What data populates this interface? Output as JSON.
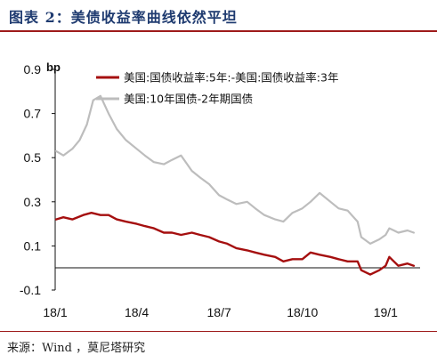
{
  "header": {
    "title": "图表 2：美债收益率曲线依然平坦"
  },
  "source": {
    "text": "来源：Wind ，莫尼塔研究"
  },
  "chart_data": {
    "type": "line",
    "ylabel": "bp",
    "ylim": [
      -0.1,
      0.9
    ],
    "yticks": [
      "0.9",
      "0.7",
      "0.5",
      "0.3",
      "0.1",
      "-0.1"
    ],
    "yticks_values": [
      0.9,
      0.7,
      0.5,
      0.3,
      0.1,
      -0.1
    ],
    "xticks": [
      "18/1",
      "18/4",
      "18/7",
      "18/10",
      "19/1"
    ],
    "xticks_values": [
      "2018-01-01",
      "2018-04-01",
      "2018-07-01",
      "2018-10-01",
      "2019-01-01"
    ],
    "grid": false,
    "legend_position": "top",
    "series": [
      {
        "name": "美国:国债收益率:5年:-美国:国债收益率:3年",
        "color": "#a50f0f",
        "points": [
          [
            "2018-01-02",
            0.22
          ],
          [
            "2018-01-10",
            0.23
          ],
          [
            "2018-01-20",
            0.22
          ],
          [
            "2018-02-01",
            0.24
          ],
          [
            "2018-02-10",
            0.25
          ],
          [
            "2018-02-20",
            0.24
          ],
          [
            "2018-03-01",
            0.24
          ],
          [
            "2018-03-10",
            0.22
          ],
          [
            "2018-03-20",
            0.21
          ],
          [
            "2018-04-01",
            0.2
          ],
          [
            "2018-04-10",
            0.19
          ],
          [
            "2018-04-20",
            0.18
          ],
          [
            "2018-05-01",
            0.16
          ],
          [
            "2018-05-10",
            0.16
          ],
          [
            "2018-05-20",
            0.15
          ],
          [
            "2018-06-01",
            0.16
          ],
          [
            "2018-06-10",
            0.15
          ],
          [
            "2018-06-20",
            0.14
          ],
          [
            "2018-07-01",
            0.12
          ],
          [
            "2018-07-10",
            0.11
          ],
          [
            "2018-07-20",
            0.09
          ],
          [
            "2018-08-01",
            0.08
          ],
          [
            "2018-08-10",
            0.07
          ],
          [
            "2018-08-20",
            0.06
          ],
          [
            "2018-09-01",
            0.05
          ],
          [
            "2018-09-10",
            0.03
          ],
          [
            "2018-09-20",
            0.04
          ],
          [
            "2018-10-01",
            0.04
          ],
          [
            "2018-10-10",
            0.07
          ],
          [
            "2018-10-20",
            0.06
          ],
          [
            "2018-11-01",
            0.05
          ],
          [
            "2018-11-10",
            0.04
          ],
          [
            "2018-11-20",
            0.03
          ],
          [
            "2018-12-01",
            0.03
          ],
          [
            "2018-12-05",
            -0.01
          ],
          [
            "2018-12-15",
            -0.03
          ],
          [
            "2018-12-25",
            -0.01
          ],
          [
            "2019-01-01",
            0.01
          ],
          [
            "2019-01-05",
            0.05
          ],
          [
            "2019-01-10",
            0.03
          ],
          [
            "2019-01-15",
            0.01
          ],
          [
            "2019-01-25",
            0.02
          ],
          [
            "2019-02-01",
            0.01
          ]
        ]
      },
      {
        "name": "美国:10年国债-2年期国债",
        "color": "#bdbdbd",
        "points": [
          [
            "2018-01-02",
            0.53
          ],
          [
            "2018-01-10",
            0.51
          ],
          [
            "2018-01-20",
            0.54
          ],
          [
            "2018-01-28",
            0.58
          ],
          [
            "2018-02-05",
            0.65
          ],
          [
            "2018-02-12",
            0.76
          ],
          [
            "2018-02-20",
            0.78
          ],
          [
            "2018-03-01",
            0.7
          ],
          [
            "2018-03-10",
            0.63
          ],
          [
            "2018-03-20",
            0.58
          ],
          [
            "2018-04-01",
            0.54
          ],
          [
            "2018-04-10",
            0.51
          ],
          [
            "2018-04-20",
            0.48
          ],
          [
            "2018-05-01",
            0.47
          ],
          [
            "2018-05-10",
            0.49
          ],
          [
            "2018-05-20",
            0.51
          ],
          [
            "2018-06-01",
            0.44
          ],
          [
            "2018-06-10",
            0.41
          ],
          [
            "2018-06-20",
            0.38
          ],
          [
            "2018-07-01",
            0.33
          ],
          [
            "2018-07-10",
            0.31
          ],
          [
            "2018-07-20",
            0.29
          ],
          [
            "2018-08-01",
            0.3
          ],
          [
            "2018-08-10",
            0.27
          ],
          [
            "2018-08-20",
            0.24
          ],
          [
            "2018-09-01",
            0.22
          ],
          [
            "2018-09-10",
            0.21
          ],
          [
            "2018-09-20",
            0.25
          ],
          [
            "2018-10-01",
            0.27
          ],
          [
            "2018-10-10",
            0.3
          ],
          [
            "2018-10-20",
            0.34
          ],
          [
            "2018-11-01",
            0.3
          ],
          [
            "2018-11-10",
            0.27
          ],
          [
            "2018-11-20",
            0.26
          ],
          [
            "2018-12-01",
            0.21
          ],
          [
            "2018-12-05",
            0.14
          ],
          [
            "2018-12-15",
            0.11
          ],
          [
            "2018-12-25",
            0.13
          ],
          [
            "2019-01-01",
            0.15
          ],
          [
            "2019-01-05",
            0.18
          ],
          [
            "2019-01-10",
            0.17
          ],
          [
            "2019-01-15",
            0.16
          ],
          [
            "2019-01-25",
            0.17
          ],
          [
            "2019-02-01",
            0.16
          ]
        ]
      }
    ]
  }
}
